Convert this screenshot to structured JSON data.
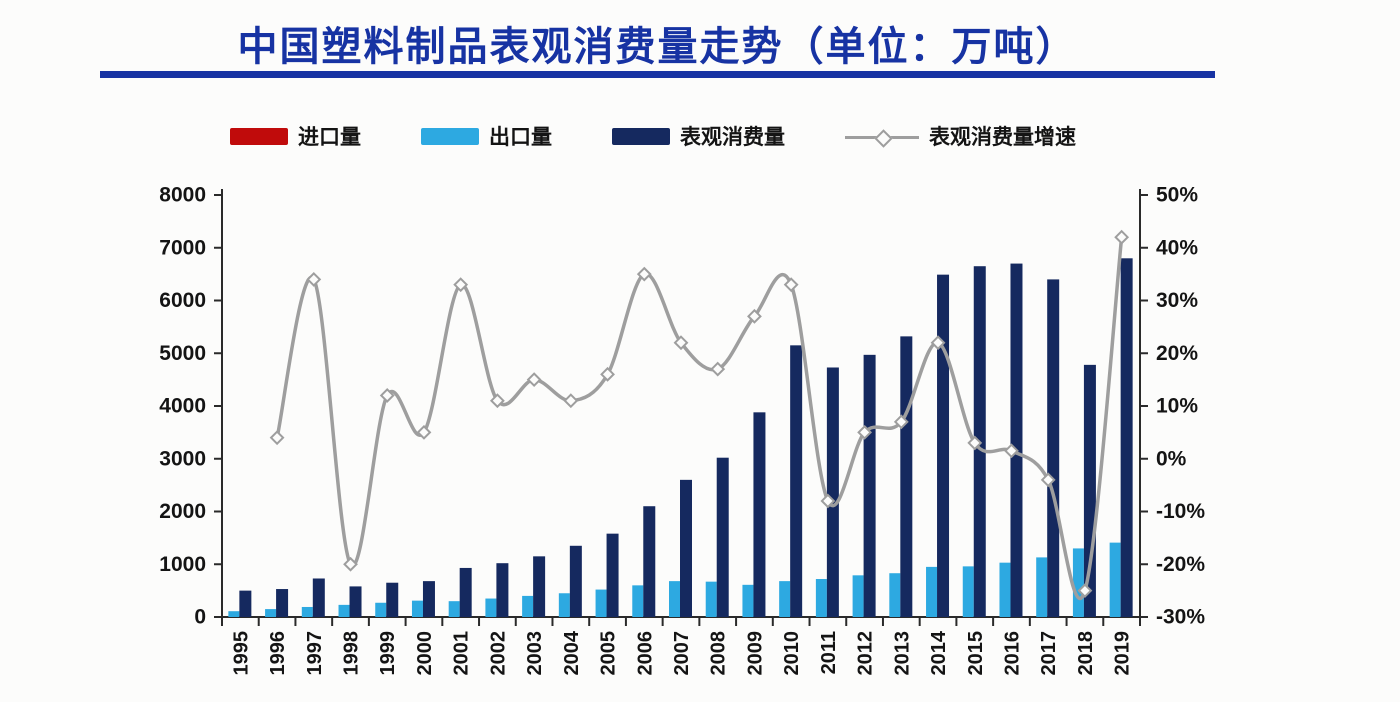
{
  "title": "中国塑料制品表观消费量走势（单位：万吨）",
  "unit": "万吨",
  "colors": {
    "title_blue": "#1733a3",
    "import_red": "#c00b0b",
    "export_cyan": "#2da9e1",
    "consumption_navy": "#15295f",
    "growth_gray": "#9e9e9e",
    "axis_line": "#2a2a2a",
    "axis_text": "#141414",
    "background": "#fcfcfb"
  },
  "legend": {
    "items": [
      {
        "label": "进口量",
        "swatch": "red-bar"
      },
      {
        "label": "出口量",
        "swatch": "cyan-bar"
      },
      {
        "label": "表观消费量",
        "swatch": "navy-bar"
      },
      {
        "label": "表观消费量增速",
        "swatch": "gray-line-diamond-marker"
      }
    ]
  },
  "chart_data": {
    "type": "bar",
    "subtype": "grouped-bars-with-line-combo",
    "title": "中国塑料制品表观消费量走势（单位：万吨）",
    "categories": [
      "1995",
      "1996",
      "1997",
      "1998",
      "1999",
      "2000",
      "2001",
      "2002",
      "2003",
      "2004",
      "2005",
      "2006",
      "2007",
      "2008",
      "2009",
      "2010",
      "2011",
      "2012",
      "2013",
      "2014",
      "2015",
      "2016",
      "2017",
      "2018",
      "2019"
    ],
    "series": [
      {
        "name": "进口量",
        "type": "bar",
        "axis": "left",
        "color": "#c00b0b",
        "values": null,
        "note": "bars too small to be visible at chart scale"
      },
      {
        "name": "出口量",
        "type": "bar",
        "axis": "left",
        "color": "#2da9e1",
        "values": [
          110,
          150,
          190,
          230,
          270,
          310,
          300,
          350,
          400,
          450,
          520,
          600,
          680,
          670,
          610,
          680,
          720,
          790,
          830,
          950,
          960,
          1030,
          1130,
          1300,
          1410
        ]
      },
      {
        "name": "表观消费量",
        "type": "bar",
        "axis": "left",
        "color": "#15295f",
        "values": [
          500,
          530,
          730,
          580,
          650,
          680,
          930,
          1020,
          1150,
          1350,
          1580,
          2100,
          2600,
          3020,
          3880,
          5150,
          4730,
          4970,
          5320,
          6490,
          6650,
          6700,
          6400,
          4780,
          6800
        ]
      },
      {
        "name": "表观消费量增速",
        "type": "line",
        "axis": "right",
        "color": "#9e9e9e",
        "marker": "open-diamond",
        "values": [
          null,
          4,
          34,
          -20,
          12,
          5,
          33,
          11,
          15,
          11,
          16,
          35,
          22,
          17,
          27,
          33,
          -8,
          5,
          7,
          22,
          3,
          1.5,
          -4,
          -25,
          42
        ]
      }
    ],
    "left_axis": {
      "min": 0,
      "max": 8000,
      "ticks": [
        0,
        1000,
        2000,
        3000,
        4000,
        5000,
        6000,
        7000,
        8000
      ]
    },
    "right_axis": {
      "min": -30,
      "max": 50,
      "ticks": [
        -30,
        -20,
        -10,
        0,
        10,
        20,
        30,
        40,
        50
      ],
      "suffix": "%"
    },
    "grid": false,
    "legend_position": "top",
    "x_tick_label_rotation": -90
  }
}
